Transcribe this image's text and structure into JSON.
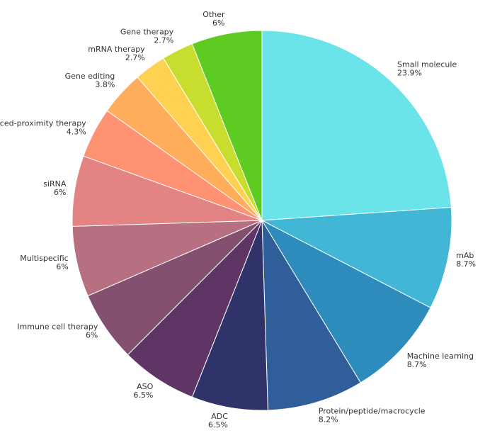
{
  "chart_data": {
    "type": "pie",
    "categories": [
      "Small molecule",
      "mAb",
      "Machine learning",
      "Protein/peptide/macrocycle",
      "ADC",
      "ASO",
      "Immune cell therapy",
      "Multispecific",
      "siRNA",
      "Induced-proximity therapy",
      "Gene editing",
      "mRNA therapy",
      "Gene therapy",
      "Other"
    ],
    "values": [
      23.9,
      8.7,
      8.7,
      8.2,
      6.5,
      6.5,
      6,
      6,
      6,
      4.3,
      3.8,
      2.7,
      2.7,
      6
    ],
    "value_labels": [
      "23.9%",
      "8.7%",
      "8.7%",
      "8.2%",
      "6.5%",
      "6.5%",
      "6%",
      "6%",
      "6%",
      "4.3%",
      "3.8%",
      "2.7%",
      "2.7%",
      "6%"
    ],
    "colors": [
      "#6be4e9",
      "#42b7d5",
      "#2e8cbd",
      "#2f5e9a",
      "#2f336a",
      "#5e3565",
      "#84506f",
      "#b76f82",
      "#e38383",
      "#ff9273",
      "#ffad5b",
      "#ffd152",
      "#c7de2f",
      "#5dcb22"
    ],
    "legend": "none",
    "start_angle": "12 o'clock",
    "direction": "clockwise"
  }
}
